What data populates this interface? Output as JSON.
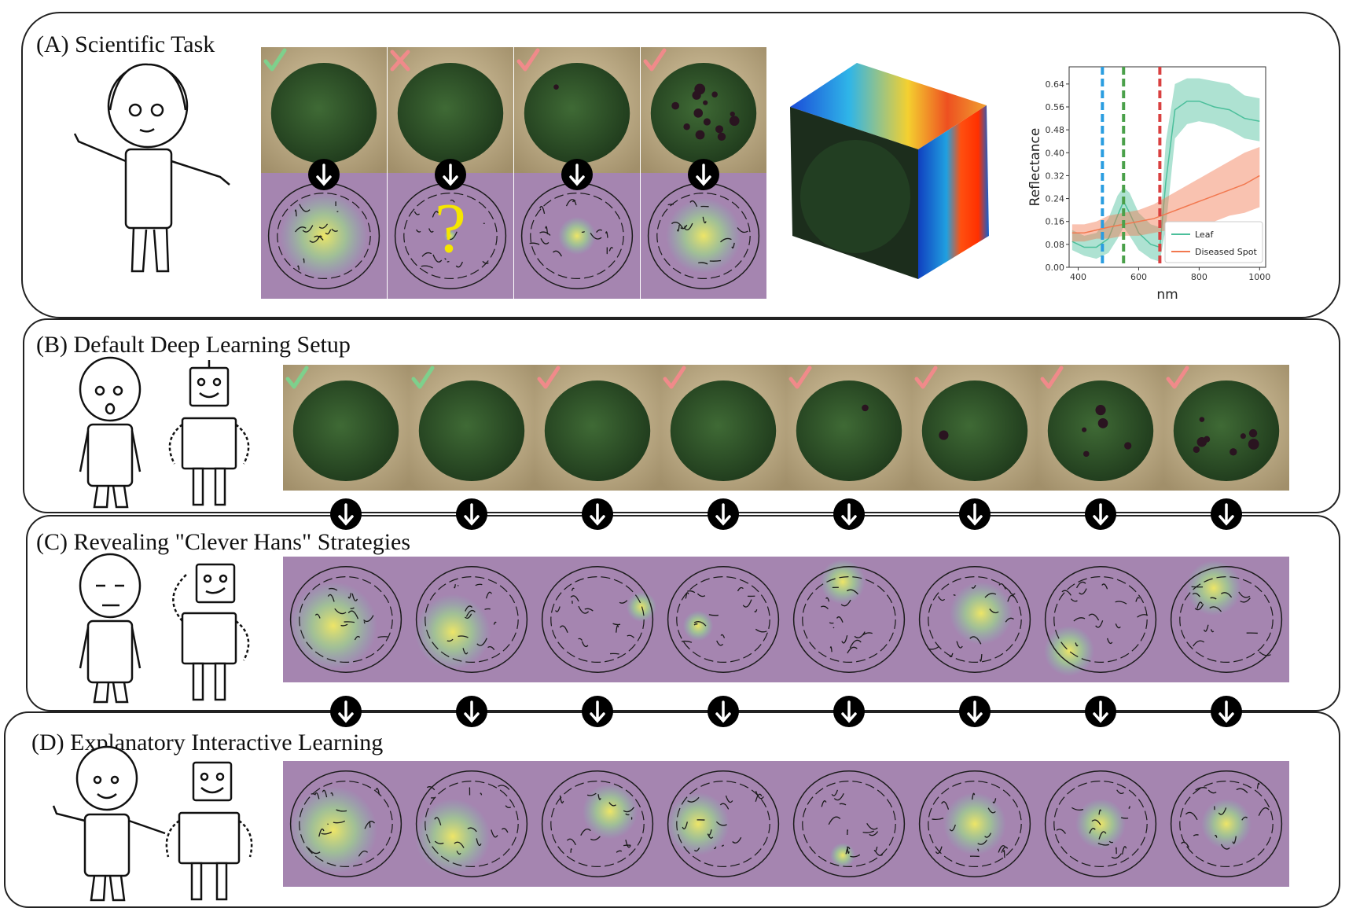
{
  "panels": [
    {
      "id": "A",
      "title": "(A) Scientific Task"
    },
    {
      "id": "B",
      "title": "(B) Default Deep Learning Setup"
    },
    {
      "id": "C",
      "title": "(C) Revealing \"Clever Hans\" Strategies"
    },
    {
      "id": "D",
      "title": "(D) Explanatory Interactive Learning"
    }
  ],
  "panel_a": {
    "marks": [
      "check",
      "cross",
      "check",
      "check"
    ],
    "mark_colors": [
      "#7ed08c",
      "#f08a8a",
      "#f08a8a",
      "#f08a8a"
    ],
    "question_mark": "?",
    "spot_counts": [
      0,
      0,
      1,
      14
    ]
  },
  "panel_b": {
    "marks": [
      "check",
      "check",
      "check",
      "check",
      "check",
      "check",
      "check",
      "check"
    ],
    "mark_colors": [
      "#7ed08c",
      "#7ed08c",
      "#f08a8a",
      "#f08a8a",
      "#f08a8a",
      "#f08a8a",
      "#f08a8a",
      "#f08a8a"
    ],
    "spot_counts": [
      0,
      0,
      0,
      0,
      1,
      1,
      5,
      8
    ]
  },
  "colors": {
    "healthy_mark": "#7ed08c",
    "diseased_mark": "#f08a8a",
    "heatmap_base": "#a585b0",
    "heatmap_hot": "#f2ea63",
    "leaf_line": "#4bbf9b",
    "spot_line": "#f2784f",
    "vline_blue": "#2a9de0",
    "vline_green": "#4aa04a",
    "vline_red": "#d94040"
  },
  "chart_data": {
    "type": "line",
    "title": "",
    "xlabel": "nm",
    "ylabel": "Reflectance",
    "xlim": [
      370,
      1020
    ],
    "ylim": [
      0.0,
      0.7
    ],
    "xticks": [
      400,
      600,
      800,
      1000
    ],
    "yticks": [
      "0.00",
      "0.08",
      "0.16",
      "0.24",
      "0.32",
      "0.40",
      "0.48",
      "0.56",
      "0.64"
    ],
    "grid": false,
    "legend_position": "lower-right",
    "vertical_lines": [
      480,
      550,
      670
    ],
    "series": [
      {
        "name": "Leaf",
        "x": [
          380,
          420,
          460,
          500,
          530,
          550,
          570,
          600,
          640,
          670,
          690,
          720,
          760,
          800,
          850,
          900,
          950,
          1000
        ],
        "y": [
          0.09,
          0.07,
          0.07,
          0.1,
          0.18,
          0.23,
          0.19,
          0.12,
          0.08,
          0.07,
          0.3,
          0.55,
          0.58,
          0.58,
          0.56,
          0.55,
          0.52,
          0.51
        ],
        "lower": [
          0.06,
          0.04,
          0.03,
          0.05,
          0.1,
          0.14,
          0.11,
          0.06,
          0.03,
          0.02,
          0.14,
          0.45,
          0.5,
          0.51,
          0.5,
          0.48,
          0.45,
          0.44
        ],
        "upper": [
          0.13,
          0.11,
          0.12,
          0.17,
          0.25,
          0.28,
          0.26,
          0.19,
          0.15,
          0.14,
          0.44,
          0.64,
          0.66,
          0.66,
          0.65,
          0.64,
          0.6,
          0.59
        ]
      },
      {
        "name": "Diseased Spot",
        "x": [
          380,
          420,
          460,
          500,
          550,
          600,
          650,
          700,
          750,
          800,
          850,
          900,
          950,
          1000
        ],
        "y": [
          0.12,
          0.12,
          0.13,
          0.14,
          0.15,
          0.16,
          0.17,
          0.19,
          0.21,
          0.23,
          0.25,
          0.27,
          0.29,
          0.32
        ],
        "lower": [
          0.09,
          0.09,
          0.1,
          0.1,
          0.11,
          0.11,
          0.12,
          0.13,
          0.14,
          0.15,
          0.16,
          0.18,
          0.19,
          0.21
        ],
        "upper": [
          0.15,
          0.15,
          0.16,
          0.18,
          0.19,
          0.2,
          0.22,
          0.25,
          0.28,
          0.31,
          0.34,
          0.37,
          0.4,
          0.42
        ]
      }
    ]
  }
}
